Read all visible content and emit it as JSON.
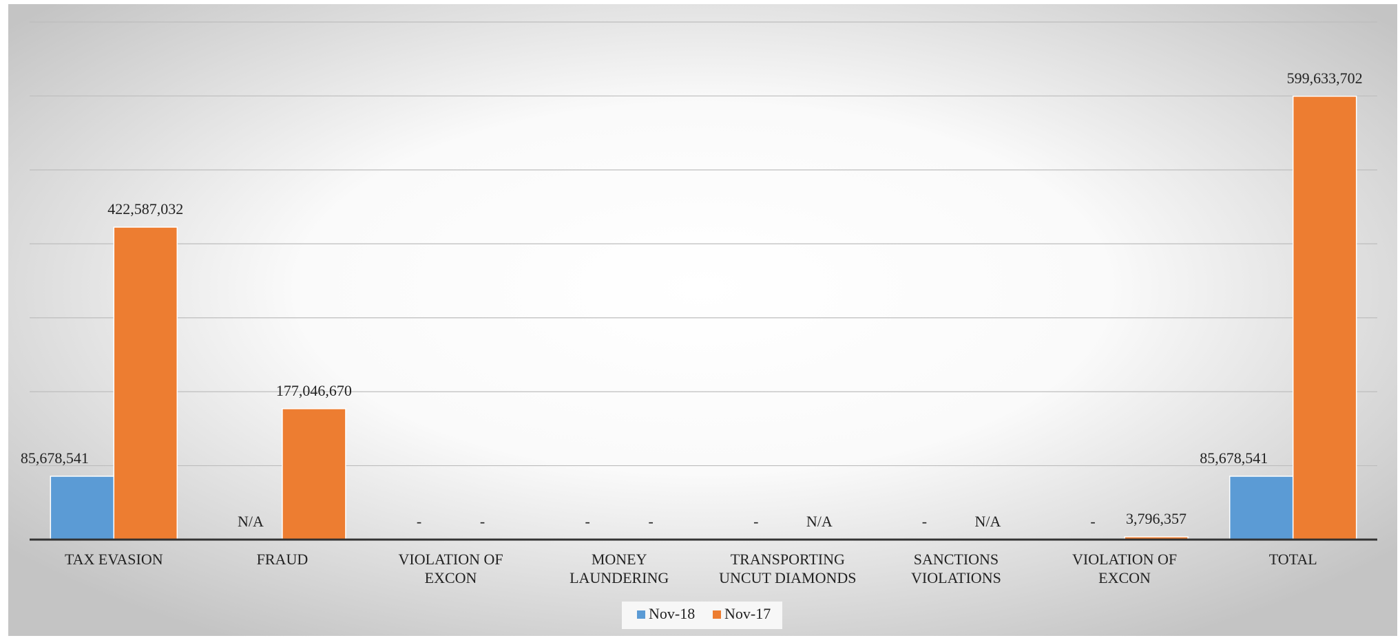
{
  "chart_data": {
    "type": "bar",
    "categories": [
      "TAX EVASION",
      "FRAUD",
      "VIOLATION OF\nEXCON",
      "MONEY\nLAUNDERING",
      "TRANSPORTING\nUNCUT DIAMONDS",
      "SANCTIONS\nVIOLATIONS",
      "VIOLATION OF\nEXCON",
      "TOTAL"
    ],
    "series": [
      {
        "name": "Nov-18",
        "color": "#5b9bd5",
        "values": [
          85678541,
          null,
          0,
          0,
          0,
          0,
          0,
          85678541
        ],
        "value_labels": [
          "85,678,541",
          "N/A",
          "-",
          "-",
          "-",
          "-",
          "-",
          "85,678,541"
        ]
      },
      {
        "name": "Nov-17",
        "color": "#ed7d31",
        "values": [
          422587032,
          177046670,
          0,
          0,
          null,
          null,
          3796357,
          599633702
        ],
        "value_labels": [
          "422,587,032",
          "177,046,670",
          "-",
          "-",
          "N/A",
          "N/A",
          "3,796,357",
          "599,633,702"
        ]
      }
    ],
    "ylim": [
      0,
      700000000
    ],
    "yticks": [
      0,
      100000000,
      200000000,
      300000000,
      400000000,
      500000000,
      600000000,
      700000000
    ],
    "grid": true,
    "legend": "bottom"
  }
}
